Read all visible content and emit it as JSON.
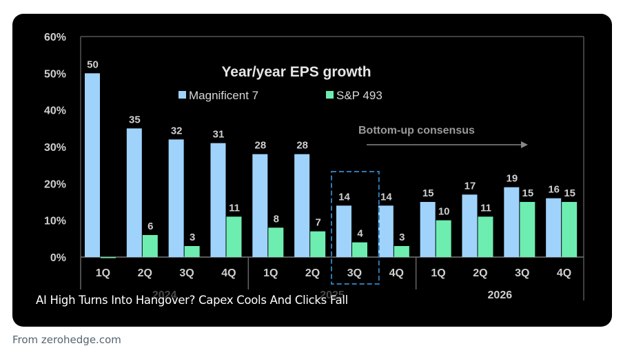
{
  "card": {
    "caption": "AI High Turns Into Hangover? Capex Cools And Clicks Fall",
    "source": "From zerohedge.com"
  },
  "chart_data": {
    "type": "bar",
    "title": "Year/year EPS growth",
    "annotation": "Bottom-up consensus",
    "yticks": [
      "0%",
      "10%",
      "20%",
      "30%",
      "40%",
      "50%",
      "60%"
    ],
    "ylim": [
      0,
      60
    ],
    "categories": [
      "1Q",
      "2Q",
      "3Q",
      "4Q",
      "1Q",
      "2Q",
      "3Q",
      "4Q",
      "1Q",
      "2Q",
      "3Q",
      "4Q"
    ],
    "years": [
      "2024",
      "2025",
      "2026"
    ],
    "highlighted_category_index": 6,
    "legend_placement": "top-center",
    "grid": false,
    "series": [
      {
        "name": "Magnificent 7",
        "color": "#9fd3fb",
        "values": [
          50,
          35,
          32,
          31,
          28,
          28,
          14,
          14,
          15,
          17,
          19,
          16
        ]
      },
      {
        "name": "S&P 493",
        "color": "#6eedb0",
        "values": [
          0,
          6,
          3,
          11,
          8,
          7,
          4,
          3,
          10,
          11,
          15,
          15
        ]
      }
    ]
  }
}
